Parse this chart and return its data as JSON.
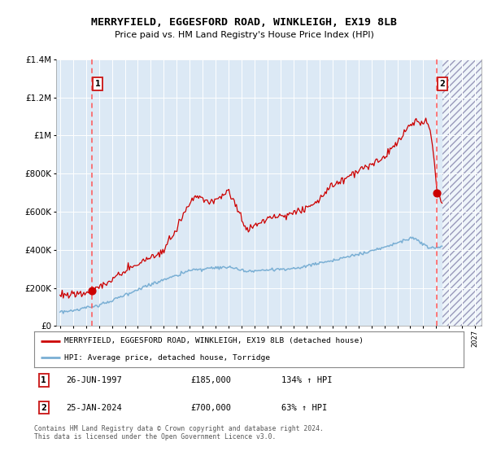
{
  "title": "MERRYFIELD, EGGESFORD ROAD, WINKLEIGH, EX19 8LB",
  "subtitle": "Price paid vs. HM Land Registry's House Price Index (HPI)",
  "sale1_yr": 1997.48,
  "sale1_price": 185000,
  "sale2_yr": 2024.07,
  "sale2_price": 700000,
  "legend1": "MERRYFIELD, EGGESFORD ROAD, WINKLEIGH, EX19 8LB (detached house)",
  "legend2": "HPI: Average price, detached house, Torridge",
  "footer": "Contains HM Land Registry data © Crown copyright and database right 2024.\nThis data is licensed under the Open Government Licence v3.0.",
  "xmin": 1994.7,
  "xmax": 2027.5,
  "ymin": 0,
  "ymax": 1400000,
  "hatch_start": 2024.45,
  "red_color": "#cc0000",
  "blue_color": "#7aafd4",
  "bg_color": "#dce9f5",
  "vline_color": "#ff5555",
  "box_edge_color": "#cc2222",
  "ytick_labels": [
    "£0",
    "£200K",
    "£400K",
    "£600K",
    "£800K",
    "£1M",
    "£1.2M",
    "£1.4M"
  ],
  "ytick_vals": [
    0,
    200000,
    400000,
    600000,
    800000,
    1000000,
    1200000,
    1400000
  ]
}
